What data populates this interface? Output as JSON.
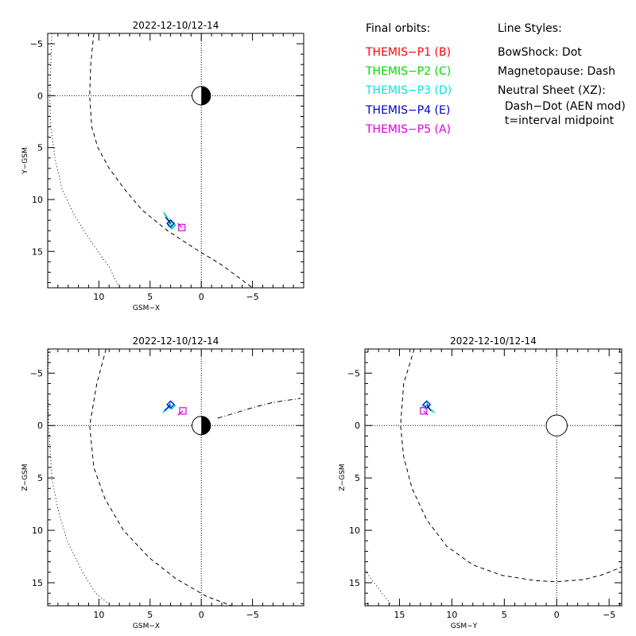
{
  "legend": {
    "heading": "Final orbits:",
    "items": [
      {
        "label": "THEMIS−P1 (B)",
        "color": "#ff0000"
      },
      {
        "label": "THEMIS−P2 (C)",
        "color": "#00dd00"
      },
      {
        "label": "THEMIS−P3 (D)",
        "color": "#00e5e5"
      },
      {
        "label": "THEMIS−P4 (E)",
        "color": "#0000cc"
      },
      {
        "label": "THEMIS−P5 (A)",
        "color": "#dd00dd"
      }
    ]
  },
  "line_styles": {
    "heading": "Line Styles:",
    "lines": [
      "BowShock: Dot",
      "Magnetopause: Dash",
      "Neutral Sheet (XZ):",
      "  Dash−Dot (AEN mod)",
      "  t=interval midpoint"
    ]
  },
  "chart_data": [
    {
      "id": "xy",
      "type": "scatter",
      "title": "2022-12-10/12-14",
      "xlabel": "GSM−X",
      "ylabel": "Y−GSM",
      "xlim": [
        15,
        -10
      ],
      "ylim": [
        -6,
        18.5
      ],
      "xticks": [
        10,
        5,
        0,
        -5
      ],
      "xticklabels": [
        "10",
        "5",
        "0",
        "−5"
      ],
      "yticks": [
        -5,
        0,
        5,
        10,
        15
      ],
      "yticklabels": [
        "−5",
        "0",
        "5",
        "10",
        "15"
      ],
      "earth": {
        "x": 0,
        "y": 0,
        "r": 0.9,
        "dark": "right"
      },
      "bow_shock": [
        [
          14.6,
          -6
        ],
        [
          14.7,
          -3
        ],
        [
          14.8,
          0
        ],
        [
          14.7,
          3
        ],
        [
          14.3,
          6
        ],
        [
          13.6,
          9
        ],
        [
          12.4,
          11.5
        ],
        [
          10.8,
          14
        ],
        [
          9,
          16.5
        ],
        [
          8,
          18.5
        ]
      ],
      "magnetopause": [
        [
          10.5,
          -6
        ],
        [
          10.8,
          -3
        ],
        [
          10.9,
          0
        ],
        [
          10.7,
          3
        ],
        [
          10.1,
          5
        ],
        [
          9,
          7
        ],
        [
          7.5,
          9
        ],
        [
          5.8,
          11
        ],
        [
          3.3,
          13
        ],
        [
          0.5,
          14.8
        ],
        [
          -2,
          16.3
        ],
        [
          -5,
          18.5
        ]
      ],
      "orbits": [
        {
          "sat": "P1",
          "color": "#ff0000",
          "points": [
            [
              3.6,
              11.4
            ],
            [
              2.9,
              12.5
            ]
          ],
          "marker": "diamond"
        },
        {
          "sat": "P2",
          "color": "#00dd00",
          "points": [
            [
              3.6,
              11.3
            ],
            [
              2.9,
              12.4
            ]
          ],
          "marker": "diamond"
        },
        {
          "sat": "P3",
          "color": "#00e5e5",
          "points": [
            [
              3.7,
              11.2
            ],
            [
              2.9,
              12.5
            ]
          ],
          "marker": "diamond"
        },
        {
          "sat": "P4",
          "color": "#0000cc",
          "points": [
            [
              3.5,
              11.7
            ],
            [
              3.0,
              12.3
            ]
          ],
          "marker": "diamond"
        },
        {
          "sat": "P5",
          "color": "#dd00dd",
          "points": [
            [
              2.3,
              12.3
            ],
            [
              1.9,
              12.7
            ]
          ],
          "marker": "square"
        }
      ]
    },
    {
      "id": "xz",
      "type": "scatter",
      "title": "2022-12-10/12-14",
      "xlabel": "GSM−X",
      "ylabel": "Z−GSM",
      "xlim": [
        15,
        -10
      ],
      "ylim": [
        -7.3,
        17.2
      ],
      "xticks": [
        10,
        5,
        0,
        -5
      ],
      "xticklabels": [
        "10",
        "5",
        "0",
        "−5"
      ],
      "yticks": [
        -5,
        0,
        5,
        10,
        15
      ],
      "yticklabels": [
        "−5",
        "0",
        "5",
        "10",
        "15"
      ],
      "earth": {
        "x": 0,
        "y": 0,
        "r": 0.9,
        "dark": "right"
      },
      "bow_shock": [
        [
          14.9,
          -7.3
        ],
        [
          15,
          -4
        ],
        [
          14.9,
          0
        ],
        [
          14.6,
          5
        ],
        [
          14,
          8
        ],
        [
          13.1,
          11
        ],
        [
          11.6,
          14
        ],
        [
          10.3,
          16
        ],
        [
          8.8,
          17.2
        ]
      ],
      "magnetopause": [
        [
          9.3,
          -7.3
        ],
        [
          10.2,
          -4
        ],
        [
          10.9,
          0
        ],
        [
          10.5,
          4
        ],
        [
          9.4,
          7
        ],
        [
          7.6,
          10
        ],
        [
          5.1,
          12.6
        ],
        [
          2.5,
          14.6
        ],
        [
          -0.5,
          16.3
        ],
        [
          -3,
          17.2
        ]
      ],
      "neutral_sheet": [
        [
          -1.6,
          -0.7
        ],
        [
          -3,
          -1.1
        ],
        [
          -5,
          -1.7
        ],
        [
          -7,
          -2.2
        ],
        [
          -9.7,
          -2.6
        ]
      ],
      "orbits": [
        {
          "sat": "P1",
          "color": "#ff0000",
          "points": [
            [
              3.7,
              -1.3
            ],
            [
              2.9,
              -1.9
            ]
          ],
          "marker": "diamond"
        },
        {
          "sat": "P2",
          "color": "#00dd00",
          "points": [
            [
              3.7,
              -1.3
            ],
            [
              2.9,
              -1.9
            ]
          ],
          "marker": "diamond"
        },
        {
          "sat": "P3",
          "color": "#00e5e5",
          "points": [
            [
              3.8,
              -1.2
            ],
            [
              2.9,
              -1.9
            ]
          ],
          "marker": "diamond"
        },
        {
          "sat": "P4",
          "color": "#0000cc",
          "points": [
            [
              3.6,
              -1.4
            ],
            [
              3.0,
              -2.0
            ]
          ],
          "marker": "diamond"
        },
        {
          "sat": "P5",
          "color": "#dd00dd",
          "points": [
            [
              2.3,
              -1.0
            ],
            [
              1.8,
              -1.4
            ]
          ],
          "marker": "square"
        }
      ]
    },
    {
      "id": "yz",
      "type": "scatter",
      "title": "2022-12-10/12-14",
      "xlabel": "GSM−Y",
      "ylabel": "Z−GSM",
      "xlim": [
        18.3,
        -6.2
      ],
      "ylim": [
        -7.3,
        17.2
      ],
      "xticks": [
        15,
        10,
        5,
        0,
        -5
      ],
      "xticklabels": [
        "15",
        "10",
        "5",
        "0",
        "−5"
      ],
      "yticks": [
        -5,
        0,
        5,
        10,
        15
      ],
      "yticklabels": [
        "−5",
        "0",
        "5",
        "10",
        "15"
      ],
      "earth": {
        "x": 0,
        "y": 0,
        "r": 1.0,
        "dark": "none"
      },
      "bow_shock": [
        [
          18.3,
          13.8
        ],
        [
          17.5,
          14.9
        ],
        [
          16.5,
          16.2
        ],
        [
          15.7,
          17.2
        ]
      ],
      "magnetopause": [
        [
          13.6,
          -7.3
        ],
        [
          14.6,
          -4
        ],
        [
          14.9,
          0
        ],
        [
          14.6,
          3
        ],
        [
          13.8,
          6
        ],
        [
          12.4,
          9
        ],
        [
          10.5,
          11.5
        ],
        [
          8,
          13.3
        ],
        [
          5.2,
          14.3
        ],
        [
          2,
          14.8
        ],
        [
          0,
          14.9
        ],
        [
          -2.6,
          14.7
        ],
        [
          -4.5,
          14.2
        ],
        [
          -6.2,
          13.5
        ]
      ],
      "orbits": [
        {
          "sat": "P1",
          "color": "#ff0000",
          "points": [
            [
              11.8,
              -1.3
            ],
            [
              12.5,
              -1.9
            ]
          ],
          "marker": "diamond"
        },
        {
          "sat": "P2",
          "color": "#00dd00",
          "points": [
            [
              11.8,
              -1.3
            ],
            [
              12.5,
              -1.9
            ]
          ],
          "marker": "diamond"
        },
        {
          "sat": "P3",
          "color": "#00e5e5",
          "points": [
            [
              11.6,
              -1.2
            ],
            [
              12.5,
              -1.9
            ]
          ],
          "marker": "diamond"
        },
        {
          "sat": "P4",
          "color": "#0000cc",
          "points": [
            [
              12.0,
              -1.4
            ],
            [
              12.4,
              -2.0
            ]
          ],
          "marker": "diamond"
        },
        {
          "sat": "P5",
          "color": "#dd00dd",
          "points": [
            [
              12.3,
              -1.0
            ],
            [
              12.7,
              -1.4
            ]
          ],
          "marker": "square"
        }
      ]
    }
  ]
}
